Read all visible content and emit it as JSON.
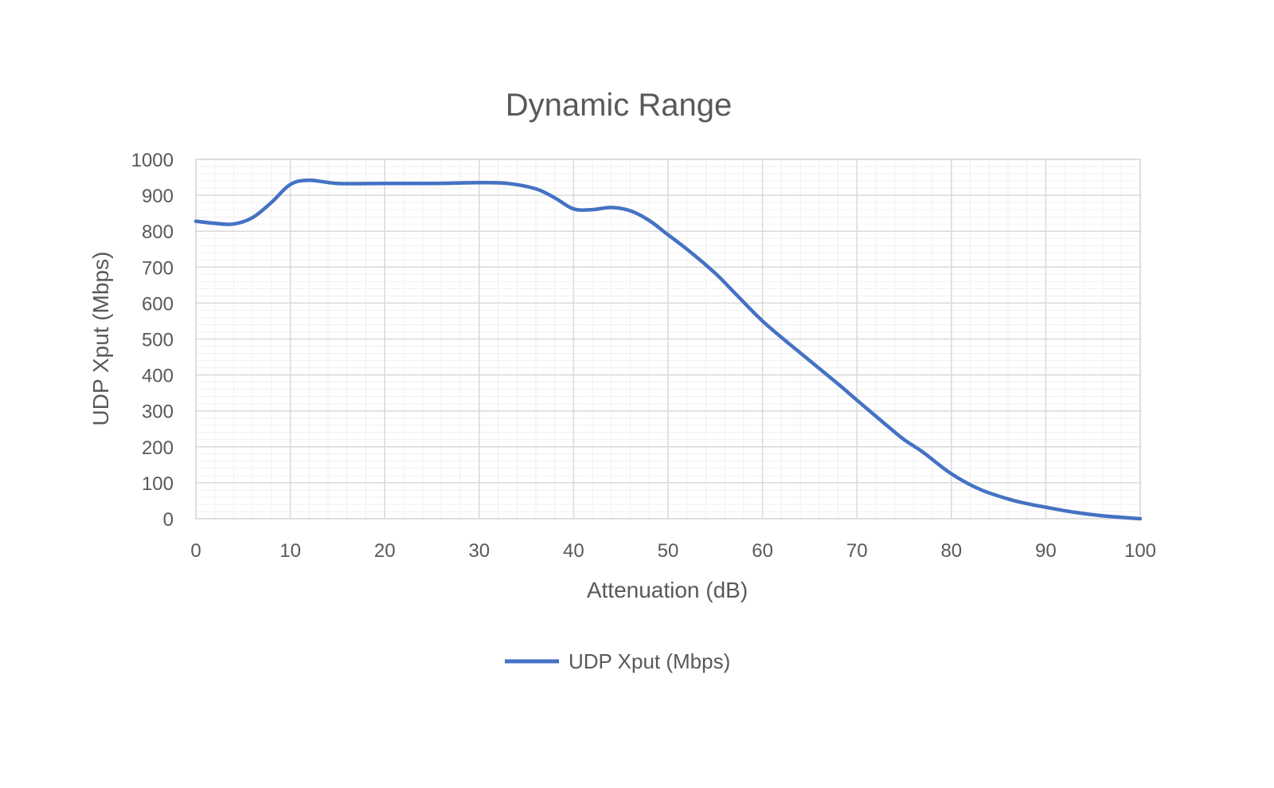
{
  "chart_data": {
    "type": "line",
    "title": "Dynamic Range",
    "xlabel": "Attenuation (dB)",
    "ylabel": "UDP Xput (Mbps)",
    "xlim": [
      0,
      100
    ],
    "ylim": [
      0,
      1000
    ],
    "x_ticks": [
      "0",
      "10",
      "20",
      "30",
      "40",
      "50",
      "60",
      "70",
      "80",
      "90",
      "100"
    ],
    "y_ticks": [
      "0",
      "100",
      "200",
      "300",
      "400",
      "500",
      "600",
      "700",
      "800",
      "900",
      "1000"
    ],
    "grid": true,
    "minor_grid": true,
    "legend_position": "bottom",
    "series": [
      {
        "name": "UDP Xput (Mbps)",
        "color": "#4472C4",
        "points": [
          [
            0,
            828
          ],
          [
            2,
            822
          ],
          [
            4,
            820
          ],
          [
            6,
            838
          ],
          [
            8,
            880
          ],
          [
            10,
            930
          ],
          [
            12,
            942
          ],
          [
            15,
            933
          ],
          [
            20,
            933
          ],
          [
            25,
            933
          ],
          [
            30,
            935
          ],
          [
            33,
            933
          ],
          [
            36,
            918
          ],
          [
            38,
            893
          ],
          [
            40,
            862
          ],
          [
            42,
            860
          ],
          [
            44,
            866
          ],
          [
            46,
            857
          ],
          [
            48,
            830
          ],
          [
            50,
            790
          ],
          [
            52,
            750
          ],
          [
            55,
            683
          ],
          [
            57,
            630
          ],
          [
            60,
            550
          ],
          [
            63,
            483
          ],
          [
            65,
            440
          ],
          [
            68,
            375
          ],
          [
            70,
            330
          ],
          [
            73,
            263
          ],
          [
            75,
            220
          ],
          [
            77,
            185
          ],
          [
            80,
            125
          ],
          [
            83,
            82
          ],
          [
            86,
            55
          ],
          [
            88,
            42
          ],
          [
            90,
            32
          ],
          [
            93,
            18
          ],
          [
            96,
            8
          ],
          [
            100,
            0
          ]
        ]
      }
    ]
  },
  "colors": {
    "grid_major": "#d9d9d9",
    "grid_minor": "#f0f0f0",
    "text": "#595959",
    "line": "#4472C4"
  }
}
